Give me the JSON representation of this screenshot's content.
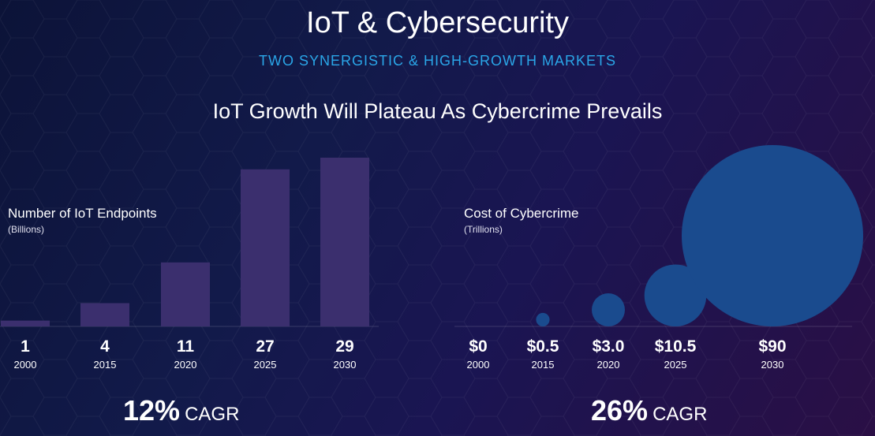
{
  "header": {
    "title": "IoT & Cybersecurity",
    "subtitle": "TWO SYNERGISTIC & HIGH-GROWTH MARKETS",
    "section_title": "IoT Growth Will Plateau As Cybercrime Prevails"
  },
  "colors": {
    "bar": "#3b2f6e",
    "bubble": "#1a4b8e",
    "subtitle": "#2aa6e8"
  },
  "chart_data": [
    {
      "type": "bar",
      "title": "Number of IoT Endpoints",
      "unit": "(Billions)",
      "categories": [
        "2000",
        "2015",
        "2020",
        "2025",
        "2030"
      ],
      "values": [
        1,
        4,
        11,
        27,
        29
      ],
      "value_labels": [
        "1",
        "4",
        "11",
        "27",
        "29"
      ],
      "ylim": [
        0,
        29
      ],
      "cagr": {
        "value": "12%",
        "label": "CAGR"
      }
    },
    {
      "type": "scatter",
      "title": "Cost of Cybercrime",
      "unit": "(Trillions)",
      "categories": [
        "2000",
        "2015",
        "2020",
        "2025",
        "2030"
      ],
      "values": [
        0,
        0.5,
        3.0,
        10.5,
        90
      ],
      "value_labels": [
        "$0",
        "$0.5",
        "$3.0",
        "$10.5",
        "$90"
      ],
      "cagr": {
        "value": "26%",
        "label": "CAGR"
      }
    }
  ]
}
